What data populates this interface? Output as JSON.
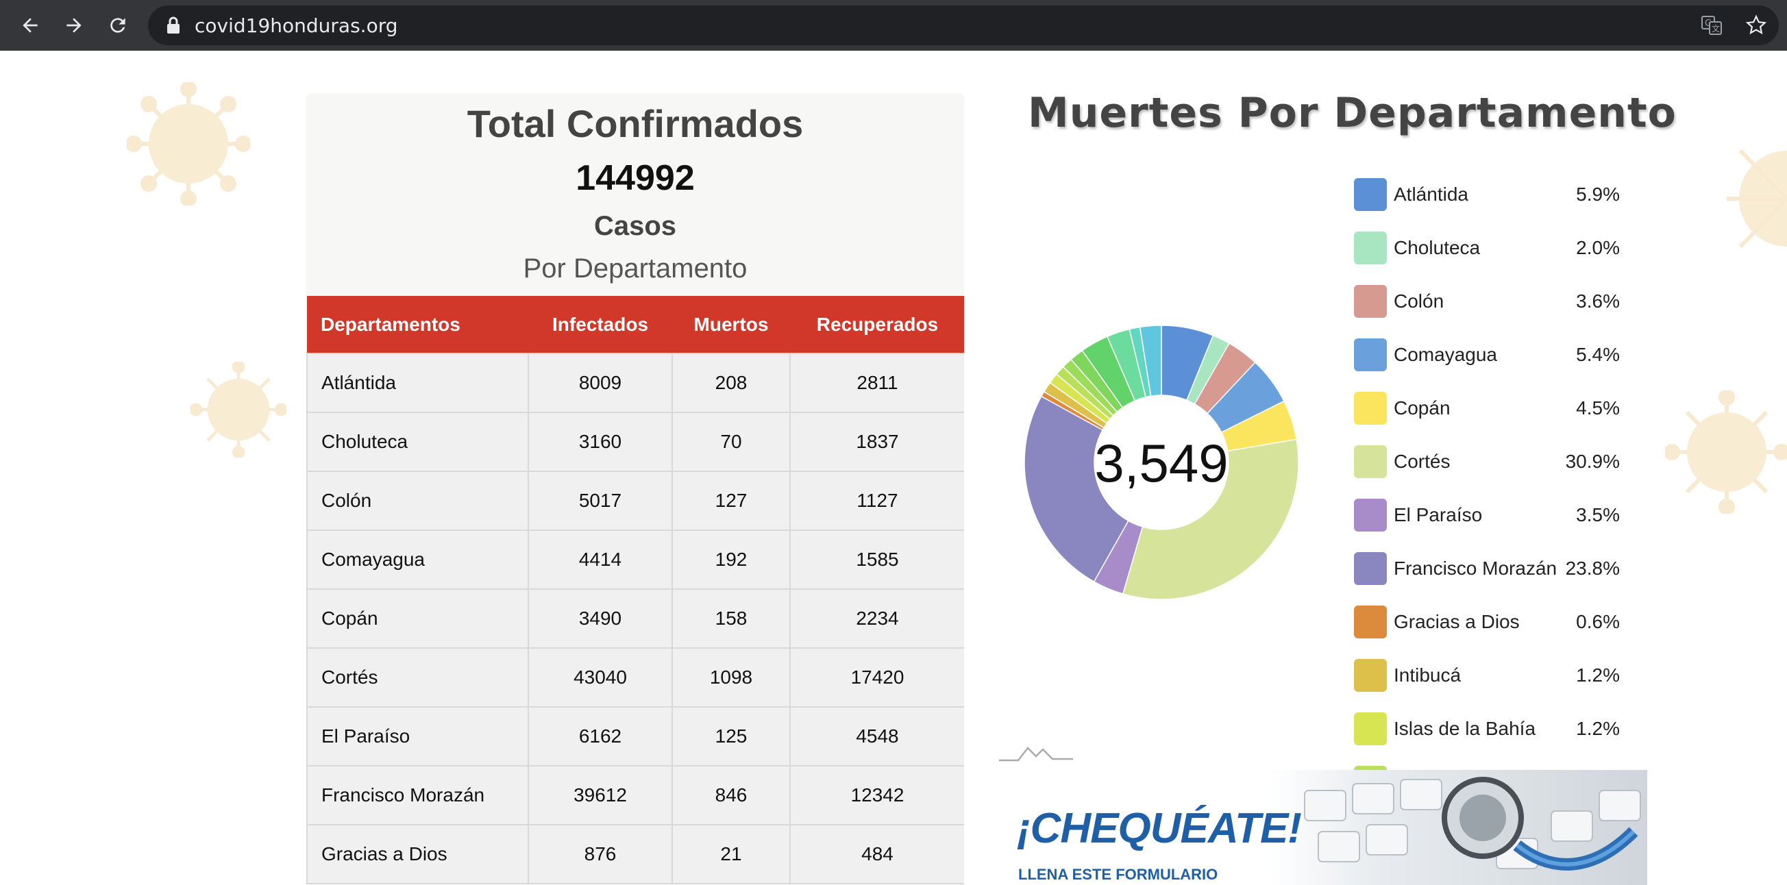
{
  "browser": {
    "url": "covid19honduras.org"
  },
  "summary": {
    "title": "Total Confirmados",
    "count": "144992",
    "casos": "Casos",
    "subtitle": "Por Departamento"
  },
  "table": {
    "headers": [
      "Departamentos",
      "Infectados",
      "Muertos",
      "Recuperados"
    ],
    "rows": [
      [
        "Atlántida",
        "8009",
        "208",
        "2811"
      ],
      [
        "Choluteca",
        "3160",
        "70",
        "1837"
      ],
      [
        "Colón",
        "5017",
        "127",
        "1127"
      ],
      [
        "Comayagua",
        "4414",
        "192",
        "1585"
      ],
      [
        "Copán",
        "3490",
        "158",
        "2234"
      ],
      [
        "Cortés",
        "43040",
        "1098",
        "17420"
      ],
      [
        "El Paraíso",
        "6162",
        "125",
        "4548"
      ],
      [
        "Francisco Morazán",
        "39612",
        "846",
        "12342"
      ],
      [
        "Gracias a Dios",
        "876",
        "21",
        "484"
      ]
    ]
  },
  "chart_data": {
    "type": "pie",
    "title": "Muertes Por Departamento",
    "center_label": "3,549",
    "legend_position": "right",
    "slices": [
      {
        "name": "Atlántida",
        "label": "5.9%",
        "value": 5.9,
        "color": "#5b8fd6"
      },
      {
        "name": "Choluteca",
        "label": "2.0%",
        "value": 2.0,
        "color": "#a8e6c2"
      },
      {
        "name": "Colón",
        "label": "3.6%",
        "value": 3.6,
        "color": "#d69a90"
      },
      {
        "name": "Comayagua",
        "label": "5.4%",
        "value": 5.4,
        "color": "#6aa0db"
      },
      {
        "name": "Copán",
        "label": "4.5%",
        "value": 4.5,
        "color": "#fce55e"
      },
      {
        "name": "Cortés",
        "label": "30.9%",
        "value": 30.9,
        "color": "#d6e49b"
      },
      {
        "name": "El Paraíso",
        "label": "3.5%",
        "value": 3.5,
        "color": "#a88cc9"
      },
      {
        "name": "Francisco Morazán",
        "label": "23.8%",
        "value": 23.8,
        "color": "#8a87c0"
      },
      {
        "name": "Gracias a Dios",
        "label": "0.6%",
        "value": 0.6,
        "color": "#dc8a3c"
      },
      {
        "name": "Intibucá",
        "label": "1.2%",
        "value": 1.2,
        "color": "#dcc04a"
      },
      {
        "name": "Islas de la Bahía",
        "label": "1.2%",
        "value": 1.2,
        "color": "#d8e552"
      }
    ],
    "other_slices_colors": [
      "#b9e05a",
      "#9bdc5a",
      "#7fd65c",
      "#62d36a",
      "#6cdc9e",
      "#62d6c0",
      "#5fc6e0"
    ],
    "other_slices_values": [
      1.1,
      1.2,
      1.6,
      3.2,
      2.6,
      1.2,
      2.4
    ]
  },
  "banner": {
    "title": "¡CHEQUÉATE!",
    "subtitle": "LLENA ESTE FORMULARIO"
  },
  "colors": {
    "table_header": "#d2382a",
    "chrome_bg": "#35363a"
  }
}
